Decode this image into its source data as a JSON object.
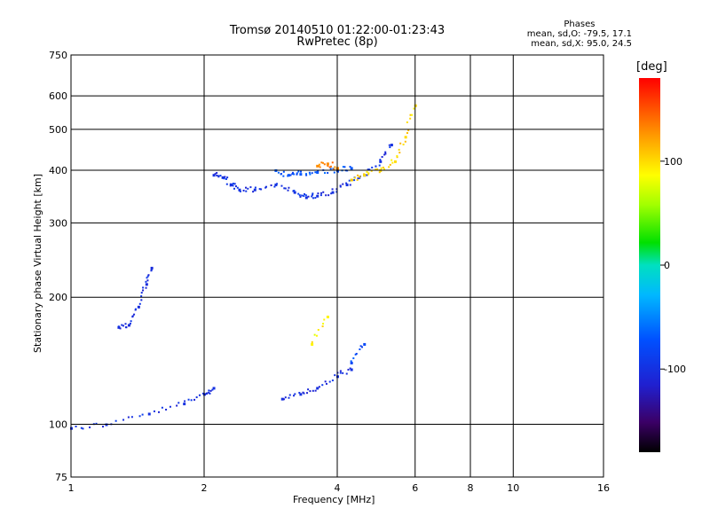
{
  "chart_data": {
    "type": "scatter",
    "title": "Tromsø 20140510 01:22:00-01:23:43",
    "subtitle": "RwPretec (8p)",
    "xlabel": "Frequency [MHz]",
    "ylabel": "Stationary phase Virtual Height [km]",
    "x_scale": "log",
    "y_scale": "log",
    "xlim": [
      1,
      16
    ],
    "ylim": [
      75,
      750
    ],
    "xticks": [
      1,
      2,
      4,
      6,
      8,
      10,
      16
    ],
    "yticks": [
      75,
      100,
      200,
      300,
      400,
      500,
      600,
      750
    ],
    "grid": true,
    "phase_stats": {
      "heading": "Phases",
      "o_line": "mean, sd,O: -79.5, 17.1",
      "x_line": "mean, sd,X:  95.0, 24.5"
    },
    "colorbar": {
      "label": "[deg]",
      "range": [
        -180,
        180
      ],
      "ticks": [
        100,
        0,
        -100
      ]
    },
    "traces": [
      {
        "x": [
          1.0,
          1.2,
          1.5,
          1.8,
          2.0,
          2.1
        ],
        "y": [
          98,
          100,
          106,
          112,
          118,
          122
        ],
        "phase": -100
      },
      {
        "x": [
          1.28,
          1.35,
          1.42,
          1.48,
          1.52
        ],
        "y": [
          170,
          172,
          190,
          215,
          235
        ],
        "phase": -105
      },
      {
        "x": [
          2.1,
          2.2,
          2.3,
          2.4,
          2.6,
          2.9,
          3.2,
          3.4,
          3.6,
          3.9,
          4.2,
          4.6,
          5.0,
          5.3
        ],
        "y": [
          390,
          385,
          370,
          360,
          360,
          370,
          355,
          345,
          348,
          355,
          370,
          390,
          420,
          460
        ],
        "phase": -100
      },
      {
        "x": [
          2.9,
          3.1,
          3.3,
          3.6,
          4.0,
          4.3
        ],
        "y": [
          400,
          390,
          392,
          396,
          400,
          405
        ],
        "phase": -70
      },
      {
        "x": [
          3.6,
          3.8,
          4.0
        ],
        "y": [
          410,
          415,
          405
        ],
        "phase": 130
      },
      {
        "x": [
          4.3,
          4.6,
          5.0,
          5.4,
          5.7,
          6.0
        ],
        "y": [
          380,
          390,
          400,
          420,
          480,
          570
        ],
        "phase": 100
      },
      {
        "x": [
          3.0,
          3.3,
          3.6,
          4.0,
          4.3
        ],
        "y": [
          115,
          118,
          122,
          130,
          135
        ],
        "phase": -100
      },
      {
        "x": [
          3.5,
          3.8
        ],
        "y": [
          155,
          180
        ],
        "phase": 90
      },
      {
        "x": [
          4.3,
          4.6
        ],
        "y": [
          140,
          155
        ],
        "phase": -80
      }
    ]
  }
}
